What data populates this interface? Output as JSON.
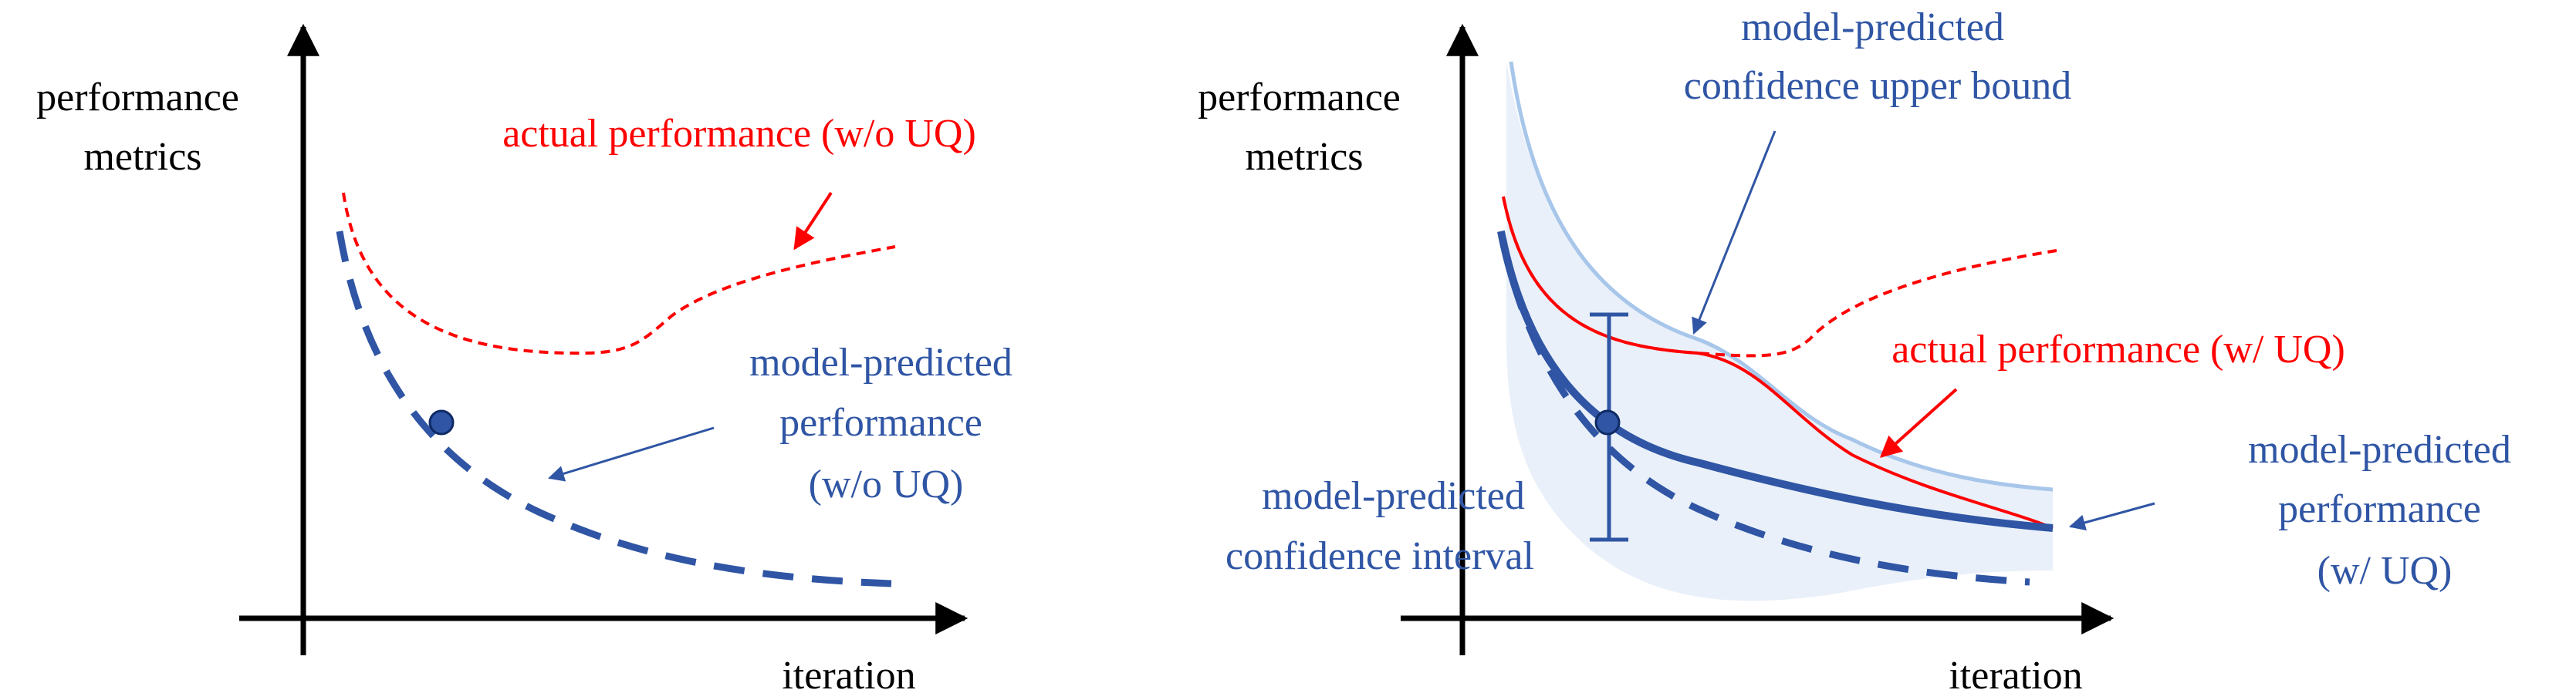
{
  "colors": {
    "axis": "#000000",
    "actual": "#ff0000",
    "predicted": "#2f55a4",
    "bound_line": "#a7c6ea",
    "band_fill": "#e9f0f9"
  },
  "left_panel": {
    "y_axis_label": [
      "performance",
      "metrics"
    ],
    "x_axis_label": "iteration",
    "actual_label": "actual performance (w/o UQ)",
    "predicted_label": [
      "model-predicted",
      "performance",
      "(w/o UQ)"
    ]
  },
  "right_panel": {
    "y_axis_label": [
      "performance",
      "metrics"
    ],
    "x_axis_label": "iteration",
    "upper_bound_label": [
      "model-predicted",
      "confidence upper bound"
    ],
    "actual_label": "actual performance (w/ UQ)",
    "interval_label": [
      "model-predicted",
      "confidence interval"
    ],
    "predicted_label": [
      "model-predicted",
      "performance",
      "(w/ UQ)"
    ]
  }
}
